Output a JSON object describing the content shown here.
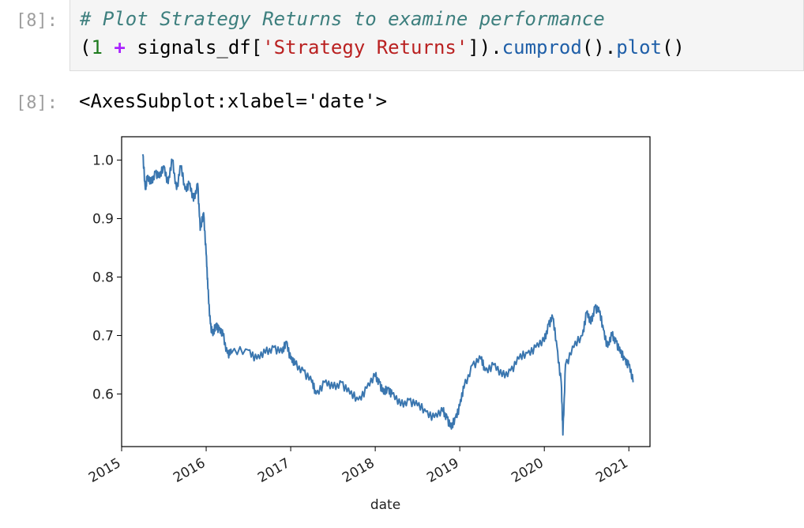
{
  "input_cell": {
    "prompt": "[8]:",
    "code": {
      "comment": "# Plot Strategy Returns to examine performance",
      "line2_open": "(",
      "line2_one": "1",
      "line2_plus": "+",
      "line2_var": "signals_df[",
      "line2_str": "'Strategy Returns'",
      "line2_close": "]).",
      "line2_fn1": "cumprod",
      "line2_mid": "().",
      "line2_fn2": "plot",
      "line2_end": "()"
    }
  },
  "output_cell": {
    "prompt": "[8]:",
    "repr_text": "<AxesSubplot:xlabel='date'>"
  },
  "colors": {
    "line": "#3a76af",
    "comment": "#3d7f7e",
    "string": "#ba2121",
    "function": "#1f5fa8",
    "prompt": "#9e9e9e"
  },
  "chart_data": {
    "type": "line",
    "xlabel": "date",
    "ylabel": "",
    "title": "",
    "grid": false,
    "legend": "none",
    "xlim": [
      2015.0,
      2021.25
    ],
    "ylim": [
      0.51,
      1.04
    ],
    "xticks": [
      2015,
      2016,
      2017,
      2018,
      2019,
      2020,
      2021
    ],
    "xtick_labels": [
      "2015",
      "2016",
      "2017",
      "2018",
      "2019",
      "2020",
      "2021"
    ],
    "yticks": [
      0.6,
      0.7,
      0.8,
      0.9,
      1.0
    ],
    "ytick_labels": [
      "0.6",
      "0.7",
      "0.8",
      "0.9",
      "1.0"
    ],
    "series": [
      {
        "x": [
          2015.25,
          2015.28,
          2015.3,
          2015.35,
          2015.4,
          2015.45,
          2015.5,
          2015.55,
          2015.6,
          2015.65,
          2015.7,
          2015.75,
          2015.8,
          2015.85,
          2015.9,
          2015.93,
          2015.97,
          2016.0,
          2016.02,
          2016.05,
          2016.08,
          2016.12,
          2016.15,
          2016.2,
          2016.25,
          2016.3,
          2016.5,
          2016.6,
          2016.7,
          2016.8,
          2016.9,
          2016.95,
          2017.0,
          2017.05,
          2017.15,
          2017.25,
          2017.3,
          2017.4,
          2017.5,
          2017.6,
          2017.7,
          2017.8,
          2017.9,
          2018.0,
          2018.05,
          2018.1,
          2018.15,
          2018.2,
          2018.3,
          2018.4,
          2018.5,
          2018.6,
          2018.7,
          2018.8,
          2018.85,
          2018.9,
          2018.95,
          2019.0,
          2019.05,
          2019.15,
          2019.25,
          2019.3,
          2019.4,
          2019.5,
          2019.6,
          2019.7,
          2019.8,
          2019.9,
          2020.0,
          2020.05,
          2020.1,
          2020.15,
          2020.2,
          2020.22,
          2020.25,
          2020.35,
          2020.45,
          2020.5,
          2020.55,
          2020.6,
          2020.65,
          2020.7,
          2020.75,
          2020.8,
          2020.85,
          2020.9,
          2020.95,
          2021.0,
          2021.05
        ],
        "y": [
          1.01,
          0.95,
          0.97,
          0.96,
          0.98,
          0.97,
          0.99,
          0.96,
          1.0,
          0.95,
          0.99,
          0.95,
          0.96,
          0.93,
          0.96,
          0.88,
          0.91,
          0.84,
          0.78,
          0.72,
          0.7,
          0.72,
          0.71,
          0.7,
          0.67,
          0.67,
          0.675,
          0.66,
          0.67,
          0.68,
          0.67,
          0.69,
          0.66,
          0.65,
          0.64,
          0.62,
          0.6,
          0.62,
          0.61,
          0.62,
          0.6,
          0.59,
          0.61,
          0.63,
          0.62,
          0.6,
          0.61,
          0.6,
          0.58,
          0.59,
          0.58,
          0.57,
          0.56,
          0.57,
          0.56,
          0.54,
          0.56,
          0.58,
          0.61,
          0.65,
          0.66,
          0.64,
          0.65,
          0.63,
          0.64,
          0.66,
          0.67,
          0.68,
          0.69,
          0.72,
          0.73,
          0.68,
          0.62,
          0.53,
          0.65,
          0.68,
          0.7,
          0.74,
          0.72,
          0.75,
          0.74,
          0.71,
          0.68,
          0.7,
          0.69,
          0.67,
          0.66,
          0.65,
          0.62
        ]
      }
    ]
  }
}
